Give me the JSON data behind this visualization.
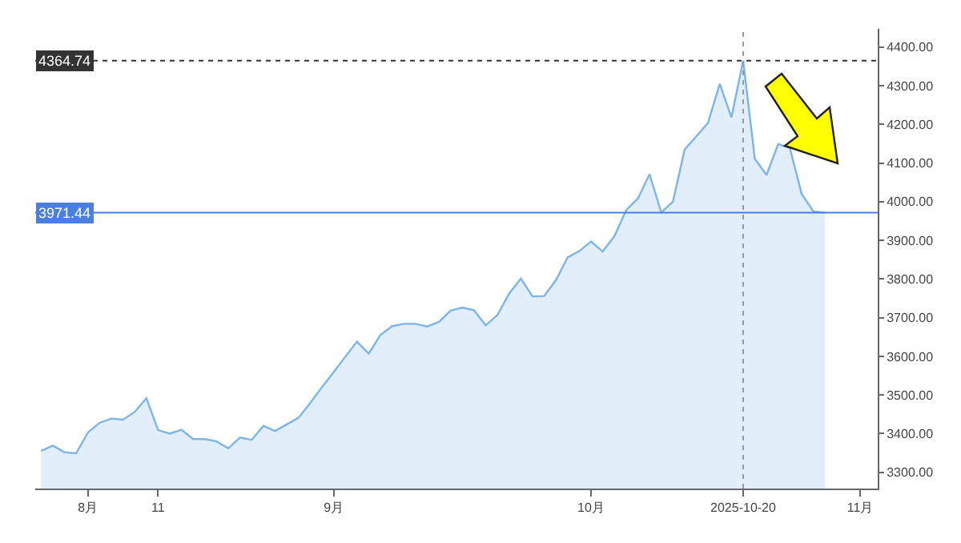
{
  "chart_data": {
    "type": "area",
    "categories": [
      null,
      null,
      null,
      null,
      "8月",
      null,
      null,
      null,
      null,
      null,
      "11",
      null,
      null,
      null,
      null,
      null,
      null,
      null,
      null,
      null,
      null,
      null,
      null,
      null,
      null,
      "9月",
      null,
      null,
      null,
      null,
      null,
      null,
      null,
      null,
      null,
      null,
      null,
      null,
      null,
      null,
      null,
      null,
      null,
      null,
      null,
      null,
      null,
      "10月",
      null,
      null,
      null,
      null,
      null,
      null,
      null,
      null,
      null,
      null,
      null,
      null,
      "2025-10-20",
      null,
      null,
      null,
      null,
      null,
      null,
      null,
      null,
      null,
      "11月",
      null
    ],
    "series": [
      {
        "color": "#7cb5ec",
        "values": [
          3355,
          3369,
          3352,
          3349,
          3403,
          3428,
          3439,
          3436,
          3456,
          3492,
          3409,
          3400,
          3410,
          3386,
          3386,
          3380,
          3362,
          3390,
          3384,
          3420,
          3407,
          3424,
          3441,
          3479,
          3520,
          3559,
          3599,
          3638,
          3607,
          3655,
          3678,
          3684,
          3684,
          3677,
          3689,
          3718,
          3726,
          3719,
          3680,
          3707,
          3762,
          3801,
          3755,
          3756,
          3797,
          3856,
          3872,
          3897,
          3871,
          3911,
          3978,
          4008,
          4071,
          3972,
          4000,
          4135,
          4169,
          4204,
          4305,
          4218,
          4364.74,
          4111,
          4069,
          4149,
          4138,
          4020,
          3975,
          3971.44,
          null,
          null,
          null,
          null
        ]
      }
    ],
    "ylim": [
      3258,
      4447
    ],
    "yticks": [
      {
        "value": 3300,
        "label": "3300.00"
      },
      {
        "value": 3400,
        "label": "3400.00"
      },
      {
        "value": 3500,
        "label": "3500.00"
      },
      {
        "value": 3600,
        "label": "3600.00"
      },
      {
        "value": 3700,
        "label": "3700.00"
      },
      {
        "value": 3800,
        "label": "3800.00"
      },
      {
        "value": 3900,
        "label": "3900.00"
      },
      {
        "value": 4000,
        "label": "4000.00"
      },
      {
        "value": 4100,
        "label": "4100.00"
      },
      {
        "value": 4200,
        "label": "4200.00"
      },
      {
        "value": 4300,
        "label": "4300.00"
      },
      {
        "value": 4400,
        "label": "4400.00"
      }
    ],
    "ref_lines": [
      {
        "axis": "y",
        "value": 4364.74,
        "label": "4364.74",
        "color": "#333333",
        "line_style": "dotted"
      },
      {
        "axis": "y",
        "value": 3971.44,
        "label": "3971.44",
        "color": "#4a7fe0",
        "line_style": "solid"
      },
      {
        "axis": "x",
        "value": "2025-10-20",
        "color": "#999999",
        "line_style": "dotted"
      }
    ],
    "grid": false,
    "legend": false
  }
}
